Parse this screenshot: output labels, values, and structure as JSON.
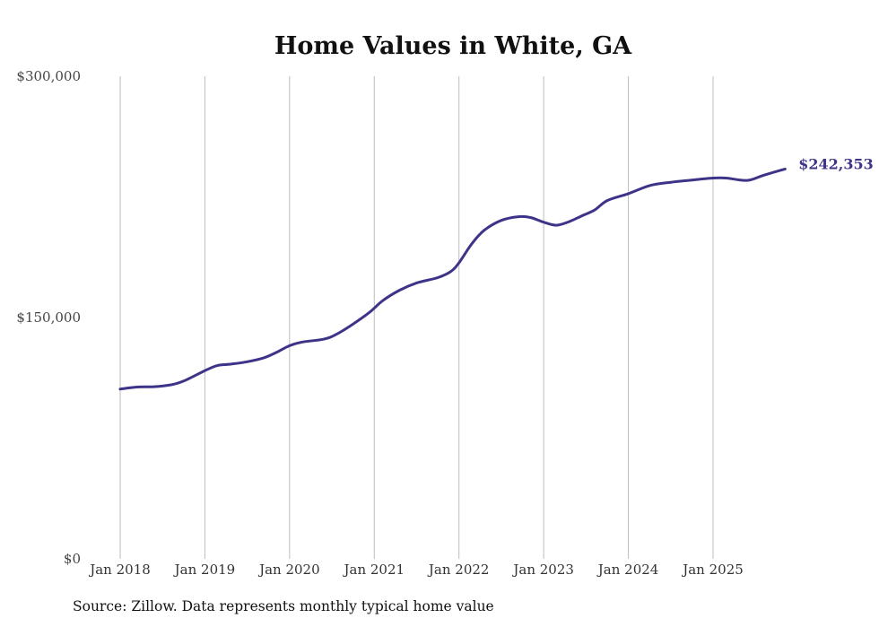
{
  "colors": {
    "line": "#3d3489",
    "end_label": "#3d3489"
  },
  "chart_data": {
    "type": "line",
    "title": "Home Values in White, GA",
    "xlabel": "",
    "ylabel": "",
    "ylim": [
      0,
      300000
    ],
    "y_ticks": [
      {
        "value": 0,
        "label": "$0"
      },
      {
        "value": 150000,
        "label": "$150,000"
      },
      {
        "value": 300000,
        "label": "$300,000"
      }
    ],
    "x_ticks": [
      {
        "value": 2018.0,
        "label": "Jan 2018"
      },
      {
        "value": 2019.0,
        "label": "Jan 2019"
      },
      {
        "value": 2020.0,
        "label": "Jan 2020"
      },
      {
        "value": 2021.0,
        "label": "Jan 2021"
      },
      {
        "value": 2022.0,
        "label": "Jan 2022"
      },
      {
        "value": 2023.0,
        "label": "Jan 2023"
      },
      {
        "value": 2024.0,
        "label": "Jan 2024"
      },
      {
        "value": 2025.0,
        "label": "Jan 2025"
      }
    ],
    "xlim": [
      2018.0,
      2025.85
    ],
    "grid": "vertical",
    "series": [
      {
        "name": "Typical home value",
        "x": [
          2018.0,
          2018.2,
          2018.4,
          2018.6,
          2018.75,
          2019.0,
          2019.15,
          2019.3,
          2019.5,
          2019.7,
          2019.85,
          2020.0,
          2020.15,
          2020.4,
          2020.55,
          2020.75,
          2020.95,
          2021.1,
          2021.3,
          2021.5,
          2021.75,
          2021.9,
          2022.0,
          2022.15,
          2022.3,
          2022.5,
          2022.7,
          2022.85,
          2023.0,
          2023.15,
          2023.3,
          2023.45,
          2023.6,
          2023.75,
          2024.0,
          2024.25,
          2024.5,
          2024.75,
          2025.0,
          2025.15,
          2025.35,
          2025.45,
          2025.6,
          2025.85
        ],
        "values": [
          105500,
          106800,
          107000,
          108200,
          110500,
          117000,
          120200,
          121000,
          122500,
          125000,
          128500,
          132500,
          134800,
          136500,
          139500,
          146000,
          153500,
          160500,
          167000,
          171500,
          174800,
          178500,
          184000,
          195800,
          204300,
          210400,
          212700,
          212100,
          209300,
          207400,
          209600,
          213200,
          216800,
          222700,
          227000,
          232000,
          234100,
          235500,
          236700,
          236700,
          235300,
          235700,
          238500,
          242353
        ]
      }
    ],
    "end_label": "$242,353",
    "source": "Source: Zillow. Data represents monthly typical home value"
  }
}
